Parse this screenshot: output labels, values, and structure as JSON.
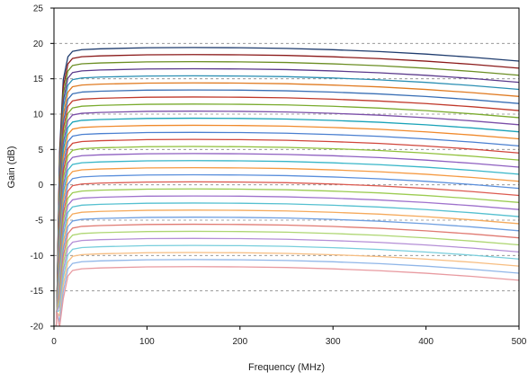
{
  "chart_data": {
    "type": "line",
    "title": "",
    "xlabel": "Frequency (MHz)",
    "ylabel": "Gain (dB)",
    "xlim": [
      0,
      500
    ],
    "ylim": [
      -20,
      25
    ],
    "xticks": [
      0,
      100,
      200,
      300,
      400,
      500
    ],
    "yticks": [
      -20,
      -15,
      -10,
      -5,
      0,
      5,
      10,
      15,
      20,
      25
    ],
    "grid": "horizontal-dashed",
    "legend": "none",
    "x": [
      0,
      3,
      6,
      10,
      15,
      20,
      30,
      50,
      100,
      150,
      200,
      250,
      300,
      350,
      400,
      450,
      500
    ],
    "series": [
      {
        "color": "#1f3c6e",
        "values": [
          -30,
          -18,
          4.64,
          14.9,
          18.11,
          18.88,
          19.12,
          19.24,
          19.39,
          19.42,
          19.39,
          19.3,
          19.11,
          18.85,
          18.49,
          18.04,
          17.5
        ]
      },
      {
        "color": "#8b1a1a",
        "values": [
          -30,
          -18,
          3.84,
          13.9,
          17.11,
          17.88,
          18.12,
          18.24,
          18.39,
          18.42,
          18.39,
          18.3,
          18.11,
          17.85,
          17.49,
          17.04,
          16.5
        ]
      },
      {
        "color": "#6b8e23",
        "values": [
          -30,
          -18,
          3.04,
          12.9,
          16.11,
          16.88,
          17.12,
          17.24,
          17.39,
          17.42,
          17.39,
          17.3,
          17.11,
          16.85,
          16.49,
          16.04,
          15.5
        ]
      },
      {
        "color": "#5b3a8c",
        "values": [
          -30,
          -18,
          2.24,
          11.9,
          15.11,
          15.88,
          16.12,
          16.24,
          16.39,
          16.42,
          16.39,
          16.3,
          16.11,
          15.85,
          15.49,
          15.04,
          14.5
        ]
      },
      {
        "color": "#2b8fb3",
        "values": [
          -30,
          -18,
          1.44,
          10.9,
          14.11,
          14.88,
          15.12,
          15.24,
          15.39,
          15.42,
          15.39,
          15.3,
          15.11,
          14.85,
          14.49,
          14.04,
          13.5
        ]
      },
      {
        "color": "#e07b22",
        "values": [
          -30,
          -18,
          0.64,
          9.9,
          13.11,
          13.88,
          14.12,
          14.24,
          14.39,
          14.42,
          14.39,
          14.3,
          14.11,
          13.85,
          13.49,
          13.04,
          12.5
        ]
      },
      {
        "color": "#3a6fb5",
        "values": [
          -30,
          -18,
          -0.16,
          8.9,
          12.11,
          12.88,
          13.12,
          13.24,
          13.39,
          13.42,
          13.39,
          13.3,
          13.11,
          12.85,
          12.49,
          12.04,
          11.5
        ]
      },
      {
        "color": "#c0392b",
        "values": [
          -30,
          -18,
          -0.96,
          7.9,
          11.11,
          11.88,
          12.12,
          12.24,
          12.39,
          12.42,
          12.39,
          12.3,
          12.11,
          11.85,
          11.49,
          11.04,
          10.5
        ]
      },
      {
        "color": "#7aab2e",
        "values": [
          -30,
          -18,
          -1.76,
          6.9,
          10.11,
          10.88,
          11.12,
          11.24,
          11.39,
          11.42,
          11.39,
          11.3,
          11.11,
          10.85,
          10.49,
          10.04,
          9.5
        ]
      },
      {
        "color": "#7b4fa8",
        "values": [
          -30,
          -18,
          -2.56,
          5.9,
          9.11,
          9.88,
          10.12,
          10.24,
          10.39,
          10.42,
          10.39,
          10.3,
          10.11,
          9.85,
          9.49,
          9.04,
          8.5
        ]
      },
      {
        "color": "#1aa3b8",
        "values": [
          -30,
          -18,
          -3.36,
          4.9,
          8.11,
          8.88,
          9.12,
          9.24,
          9.39,
          9.42,
          9.39,
          9.3,
          9.11,
          8.85,
          8.49,
          8.04,
          7.5
        ]
      },
      {
        "color": "#f08a2c",
        "values": [
          -30,
          -18,
          -4.16,
          3.9,
          7.11,
          7.88,
          8.12,
          8.24,
          8.39,
          8.42,
          8.39,
          8.3,
          8.11,
          7.85,
          7.49,
          7.04,
          6.5
        ]
      },
      {
        "color": "#4a7fd0",
        "values": [
          -30,
          -18,
          -4.96,
          2.9,
          6.11,
          6.88,
          7.12,
          7.24,
          7.39,
          7.42,
          7.39,
          7.3,
          7.11,
          6.85,
          6.49,
          6.04,
          5.5
        ]
      },
      {
        "color": "#d0453a",
        "values": [
          -30,
          -18,
          -5.76,
          1.9,
          5.11,
          5.88,
          6.12,
          6.24,
          6.39,
          6.42,
          6.39,
          6.3,
          6.11,
          5.85,
          5.49,
          5.04,
          4.5
        ]
      },
      {
        "color": "#8fc03a",
        "values": [
          -30,
          -18,
          -6.56,
          0.9,
          4.11,
          4.88,
          5.12,
          5.24,
          5.39,
          5.42,
          5.39,
          5.3,
          5.11,
          4.85,
          4.49,
          4.04,
          3.5
        ]
      },
      {
        "color": "#8e5fc0",
        "values": [
          -30,
          -18,
          -7.36,
          -0.1,
          3.11,
          3.88,
          4.12,
          4.24,
          4.39,
          4.42,
          4.39,
          4.3,
          4.11,
          3.85,
          3.49,
          3.04,
          2.5
        ]
      },
      {
        "color": "#38b6c8",
        "values": [
          -30,
          -18,
          -8.16,
          -1.1,
          2.11,
          2.88,
          3.12,
          3.24,
          3.39,
          3.42,
          3.39,
          3.3,
          3.11,
          2.85,
          2.49,
          2.04,
          1.5
        ]
      },
      {
        "color": "#f59a42",
        "values": [
          -30,
          -18,
          -8.96,
          -2.1,
          1.11,
          1.88,
          2.12,
          2.24,
          2.39,
          2.42,
          2.39,
          2.3,
          2.11,
          1.85,
          1.49,
          1.04,
          0.5
        ]
      },
      {
        "color": "#5a8fdc",
        "values": [
          -30,
          -18,
          -9.76,
          -3.1,
          0.11,
          0.88,
          1.12,
          1.24,
          1.39,
          1.42,
          1.39,
          1.3,
          1.11,
          0.85,
          0.49,
          0.04,
          -0.5
        ]
      },
      {
        "color": "#dc5a50",
        "values": [
          -30,
          -18,
          -10.56,
          -4.1,
          -0.89,
          -0.12,
          0.12,
          0.24,
          0.39,
          0.42,
          0.39,
          0.3,
          0.11,
          -0.15,
          -0.51,
          -0.96,
          -1.5
        ]
      },
      {
        "color": "#9ccc52",
        "values": [
          -30,
          -18,
          -11.36,
          -5.1,
          -1.89,
          -1.12,
          -0.88,
          -0.76,
          -0.61,
          -0.58,
          -0.61,
          -0.7,
          -0.89,
          -1.15,
          -1.51,
          -1.96,
          -2.5
        ]
      },
      {
        "color": "#9f72cc",
        "values": [
          -30,
          -18,
          -12.16,
          -6.1,
          -2.89,
          -2.12,
          -1.88,
          -1.76,
          -1.61,
          -1.58,
          -1.61,
          -1.7,
          -1.89,
          -2.15,
          -2.51,
          -2.96,
          -3.5
        ]
      },
      {
        "color": "#55c0d0",
        "values": [
          -30,
          -18,
          -12.96,
          -7.1,
          -3.89,
          -3.12,
          -2.88,
          -2.76,
          -2.61,
          -2.58,
          -2.61,
          -2.7,
          -2.89,
          -3.15,
          -3.51,
          -3.96,
          -4.5
        ]
      },
      {
        "color": "#f5aa5c",
        "values": [
          -30,
          -18,
          -13.76,
          -8.1,
          -4.89,
          -4.12,
          -3.88,
          -3.76,
          -3.61,
          -3.58,
          -3.61,
          -3.7,
          -3.89,
          -4.15,
          -4.51,
          -4.96,
          -5.5
        ]
      },
      {
        "color": "#6f9fe0",
        "values": [
          -30,
          -18,
          -14.56,
          -9.1,
          -5.89,
          -5.12,
          -4.88,
          -4.76,
          -4.61,
          -4.58,
          -4.61,
          -4.7,
          -4.89,
          -5.15,
          -5.51,
          -5.96,
          -6.5
        ]
      },
      {
        "color": "#e07a72",
        "values": [
          -30,
          -18,
          -15.36,
          -10.1,
          -6.89,
          -6.12,
          -5.88,
          -5.76,
          -5.61,
          -5.58,
          -5.61,
          -5.7,
          -5.89,
          -6.15,
          -6.51,
          -6.96,
          -7.5
        ]
      },
      {
        "color": "#aed672",
        "values": [
          -30,
          -18,
          -16.16,
          -11.1,
          -7.89,
          -7.12,
          -6.88,
          -6.76,
          -6.61,
          -6.58,
          -6.61,
          -6.7,
          -6.89,
          -7.15,
          -7.51,
          -7.96,
          -8.5
        ]
      },
      {
        "color": "#b48ed6",
        "values": [
          -30,
          -18,
          -16.96,
          -12.1,
          -8.89,
          -8.12,
          -7.88,
          -7.76,
          -7.61,
          -7.58,
          -7.61,
          -7.7,
          -7.89,
          -8.15,
          -8.51,
          -8.96,
          -9.5
        ]
      },
      {
        "color": "#78cedc",
        "values": [
          -30,
          -18,
          -17.76,
          -13.1,
          -9.89,
          -9.12,
          -8.88,
          -8.76,
          -8.61,
          -8.58,
          -8.61,
          -8.7,
          -8.89,
          -9.15,
          -9.51,
          -9.96,
          -10.5
        ]
      },
      {
        "color": "#f7bd80",
        "values": [
          -30,
          -18,
          -18.56,
          -14.1,
          -10.89,
          -10.12,
          -9.88,
          -9.76,
          -9.61,
          -9.58,
          -9.61,
          -9.7,
          -9.89,
          -10.15,
          -10.51,
          -10.96,
          -11.5
        ]
      },
      {
        "color": "#90b6e8",
        "values": [
          -30,
          -18,
          -19.36,
          -15.1,
          -11.89,
          -11.12,
          -10.88,
          -10.76,
          -10.61,
          -10.58,
          -10.61,
          -10.7,
          -10.89,
          -11.15,
          -11.51,
          -11.96,
          -12.5
        ]
      },
      {
        "color": "#e89aa0",
        "values": [
          -30,
          -18,
          -20.16,
          -16.1,
          -12.89,
          -12.12,
          -11.88,
          -11.76,
          -11.61,
          -11.58,
          -11.61,
          -11.7,
          -11.89,
          -12.15,
          -12.51,
          -12.96,
          -13.5
        ]
      }
    ]
  }
}
